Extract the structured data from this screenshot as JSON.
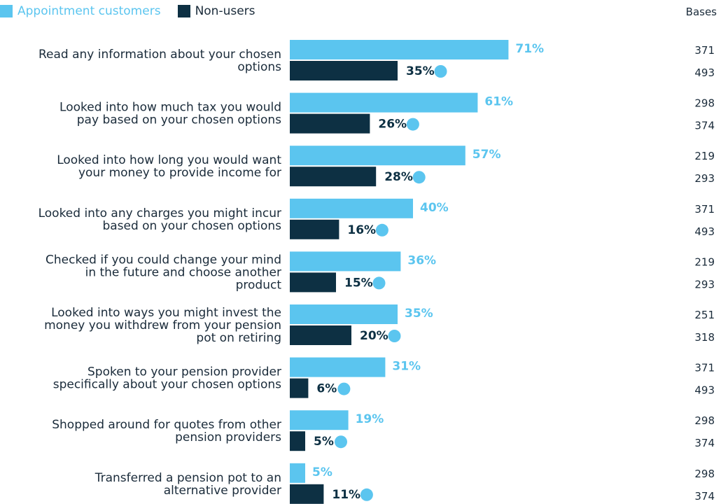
{
  "legend": {
    "series0": "Appointment customers",
    "series1": "Non-users"
  },
  "bases_header": "Bases",
  "colors": {
    "appointment": "#5bc5ef",
    "nonusers": "#0d3043",
    "marker": "#5bc5ef",
    "text": "#1a2b3a"
  },
  "chart_data": {
    "type": "bar",
    "orientation": "horizontal",
    "categories": [
      [
        "Read any information about your chosen",
        "options"
      ],
      [
        "Looked into how much tax you would",
        "pay based on your chosen options"
      ],
      [
        "Looked into how long you would want",
        "your money to provide income for"
      ],
      [
        "Looked into any charges you might incur",
        "based on your chosen options"
      ],
      [
        "Checked if you could change your mind",
        "in the future and choose another",
        "product"
      ],
      [
        "Looked into ways you might invest the",
        "money you withdrew from your pension",
        "pot on retiring"
      ],
      [
        "Spoken to your pension provider",
        "specifically about your chosen options"
      ],
      [
        "Shopped around for quotes from other",
        "pension providers"
      ],
      [
        "Transferred a pension pot to an",
        "alternative provider"
      ]
    ],
    "series": [
      {
        "name": "Appointment customers",
        "values": [
          71,
          61,
          57,
          40,
          36,
          35,
          31,
          19,
          5
        ],
        "labels": [
          "71%",
          "61%",
          "57%",
          "40%",
          "36%",
          "35%",
          "31%",
          "19%",
          "5%"
        ],
        "bases": [
          "371",
          "298",
          "219",
          "371",
          "219",
          "251",
          "371",
          "298",
          "298"
        ]
      },
      {
        "name": "Non-users",
        "values": [
          35,
          26,
          28,
          16,
          15,
          20,
          6,
          5,
          11
        ],
        "labels": [
          "35%",
          "26%",
          "28%",
          "16%",
          "15%",
          "20%",
          "6%",
          "5%",
          "11%"
        ],
        "bases": [
          "493",
          "374",
          "293",
          "493",
          "293",
          "318",
          "493",
          "374",
          "374"
        ]
      }
    ],
    "significance_marker_series": "Non-users",
    "xlim": [
      0,
      100
    ],
    "grid": false,
    "legend_position": "top-left"
  }
}
